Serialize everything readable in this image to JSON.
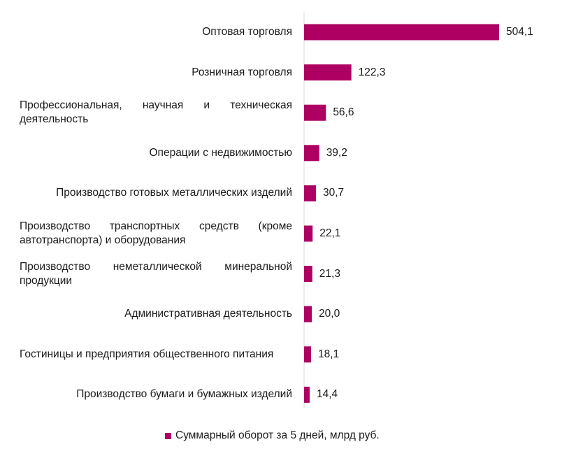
{
  "chart_data": {
    "type": "bar",
    "orientation": "horizontal",
    "categories": [
      "Оптовая торговля",
      "Розничная торговля",
      "Профессиональная, научная и техническая деятельность",
      "Операции с недвижимостью",
      "Производство готовых металлических изделий",
      "Производство транспортных средств (кроме автотранспорта) и оборудования",
      "Производство неметаллической минеральной продукции",
      "Административная деятельность",
      "Гостиницы и предприятия общественного питания",
      "Производство бумаги и бумажных изделий"
    ],
    "series": [
      {
        "name": "Суммарный оборот за 5 дней, млрд руб.",
        "values": [
          504.1,
          122.3,
          56.6,
          39.2,
          30.7,
          22.1,
          21.3,
          20.0,
          18.1,
          14.4
        ],
        "labels": [
          "504,1",
          "122,3",
          "56,6",
          "39,2",
          "30,7",
          "22,1",
          "21,3",
          "20,0",
          "18,1",
          "14,4"
        ]
      }
    ],
    "legend_position": "bottom",
    "grid": false,
    "bar_color": "#AD0062"
  }
}
